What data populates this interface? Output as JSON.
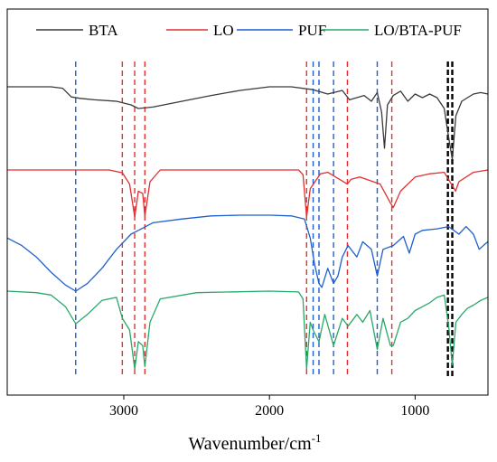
{
  "chart_data": {
    "type": "line",
    "title": "",
    "xlabel": "Wavenumber/cm",
    "xlabel_superscript": "-1",
    "ylabel": "",
    "x_reversed": true,
    "xlim": [
      3800,
      500
    ],
    "x_ticks": [
      {
        "value": 3000,
        "label": "3000"
      },
      {
        "value": 2000,
        "label": "2000"
      },
      {
        "value": 1000,
        "label": "1000"
      }
    ],
    "grid": false,
    "legend_position": "top",
    "series": [
      {
        "name": "BTA",
        "color": "#3a3a3a",
        "baseline": 1.0,
        "points": [
          [
            3800,
            1.0
          ],
          [
            3500,
            1.0
          ],
          [
            3420,
            0.98
          ],
          [
            3360,
            0.86
          ],
          [
            3300,
            0.84
          ],
          [
            3200,
            0.82
          ],
          [
            3050,
            0.8
          ],
          [
            2950,
            0.75
          ],
          [
            2900,
            0.7
          ],
          [
            2800,
            0.72
          ],
          [
            2600,
            0.8
          ],
          [
            2400,
            0.88
          ],
          [
            2200,
            0.95
          ],
          [
            2000,
            1.0
          ],
          [
            1850,
            1.0
          ],
          [
            1700,
            0.96
          ],
          [
            1600,
            0.9
          ],
          [
            1500,
            0.95
          ],
          [
            1450,
            0.82
          ],
          [
            1350,
            0.88
          ],
          [
            1300,
            0.8
          ],
          [
            1260,
            0.92
          ],
          [
            1230,
            0.65
          ],
          [
            1210,
            0.15
          ],
          [
            1190,
            0.75
          ],
          [
            1150,
            0.88
          ],
          [
            1100,
            0.94
          ],
          [
            1050,
            0.8
          ],
          [
            1000,
            0.9
          ],
          [
            950,
            0.85
          ],
          [
            900,
            0.9
          ],
          [
            850,
            0.85
          ],
          [
            800,
            0.7
          ],
          [
            770,
            0.3
          ],
          [
            745,
            0.0
          ],
          [
            720,
            0.6
          ],
          [
            680,
            0.8
          ],
          [
            640,
            0.85
          ],
          [
            600,
            0.9
          ],
          [
            550,
            0.92
          ],
          [
            500,
            0.9
          ]
        ]
      },
      {
        "name": "LO",
        "color": "#e03030",
        "baseline": 1.0,
        "points": [
          [
            3800,
            1.0
          ],
          [
            3100,
            1.0
          ],
          [
            3010,
            0.94
          ],
          [
            2960,
            0.7
          ],
          [
            2925,
            0.0
          ],
          [
            2900,
            0.55
          ],
          [
            2870,
            0.5
          ],
          [
            2855,
            0.02
          ],
          [
            2820,
            0.75
          ],
          [
            2750,
            1.0
          ],
          [
            1800,
            1.0
          ],
          [
            1770,
            0.9
          ],
          [
            1745,
            0.0
          ],
          [
            1720,
            0.6
          ],
          [
            1650,
            0.92
          ],
          [
            1600,
            0.95
          ],
          [
            1465,
            0.7
          ],
          [
            1440,
            0.8
          ],
          [
            1380,
            0.85
          ],
          [
            1240,
            0.7
          ],
          [
            1170,
            0.3
          ],
          [
            1150,
            0.2
          ],
          [
            1100,
            0.55
          ],
          [
            1000,
            0.85
          ],
          [
            900,
            0.92
          ],
          [
            800,
            0.95
          ],
          [
            722,
            0.55
          ],
          [
            700,
            0.75
          ],
          [
            600,
            0.95
          ],
          [
            500,
            1.0
          ]
        ]
      },
      {
        "name": "PUF",
        "color": "#1f5fd0",
        "baseline": 1.0,
        "points": [
          [
            3800,
            0.7
          ],
          [
            3700,
            0.6
          ],
          [
            3600,
            0.45
          ],
          [
            3500,
            0.25
          ],
          [
            3400,
            0.08
          ],
          [
            3330,
            0.0
          ],
          [
            3250,
            0.1
          ],
          [
            3150,
            0.3
          ],
          [
            3050,
            0.55
          ],
          [
            2950,
            0.75
          ],
          [
            2900,
            0.8
          ],
          [
            2800,
            0.9
          ],
          [
            2600,
            0.95
          ],
          [
            2400,
            0.99
          ],
          [
            2200,
            1.0
          ],
          [
            2000,
            1.0
          ],
          [
            1850,
            0.99
          ],
          [
            1760,
            0.95
          ],
          [
            1720,
            0.7
          ],
          [
            1690,
            0.35
          ],
          [
            1660,
            0.1
          ],
          [
            1640,
            0.05
          ],
          [
            1600,
            0.3
          ],
          [
            1560,
            0.1
          ],
          [
            1530,
            0.2
          ],
          [
            1500,
            0.45
          ],
          [
            1460,
            0.6
          ],
          [
            1400,
            0.45
          ],
          [
            1360,
            0.65
          ],
          [
            1300,
            0.55
          ],
          [
            1260,
            0.2
          ],
          [
            1220,
            0.55
          ],
          [
            1150,
            0.6
          ],
          [
            1080,
            0.72
          ],
          [
            1040,
            0.5
          ],
          [
            1000,
            0.75
          ],
          [
            950,
            0.8
          ],
          [
            850,
            0.82
          ],
          [
            770,
            0.85
          ],
          [
            700,
            0.75
          ],
          [
            650,
            0.85
          ],
          [
            600,
            0.75
          ],
          [
            560,
            0.55
          ],
          [
            520,
            0.62
          ],
          [
            500,
            0.65
          ]
        ]
      },
      {
        "name": "LO/BTA-PUF",
        "color": "#2aa86a",
        "baseline": 1.0,
        "points": [
          [
            3800,
            1.0
          ],
          [
            3600,
            0.98
          ],
          [
            3500,
            0.95
          ],
          [
            3400,
            0.8
          ],
          [
            3330,
            0.58
          ],
          [
            3250,
            0.7
          ],
          [
            3150,
            0.88
          ],
          [
            3050,
            0.92
          ],
          [
            3010,
            0.65
          ],
          [
            2960,
            0.5
          ],
          [
            2925,
            0.0
          ],
          [
            2900,
            0.35
          ],
          [
            2870,
            0.3
          ],
          [
            2855,
            0.03
          ],
          [
            2820,
            0.6
          ],
          [
            2750,
            0.9
          ],
          [
            2500,
            0.98
          ],
          [
            2000,
            1.0
          ],
          [
            1800,
            0.99
          ],
          [
            1770,
            0.9
          ],
          [
            1745,
            0.0
          ],
          [
            1720,
            0.6
          ],
          [
            1700,
            0.5
          ],
          [
            1660,
            0.35
          ],
          [
            1620,
            0.7
          ],
          [
            1560,
            0.3
          ],
          [
            1500,
            0.65
          ],
          [
            1460,
            0.55
          ],
          [
            1400,
            0.7
          ],
          [
            1360,
            0.6
          ],
          [
            1310,
            0.75
          ],
          [
            1260,
            0.25
          ],
          [
            1220,
            0.65
          ],
          [
            1170,
            0.3
          ],
          [
            1150,
            0.3
          ],
          [
            1100,
            0.6
          ],
          [
            1050,
            0.65
          ],
          [
            1000,
            0.75
          ],
          [
            950,
            0.8
          ],
          [
            900,
            0.85
          ],
          [
            850,
            0.92
          ],
          [
            800,
            0.95
          ],
          [
            770,
            0.55
          ],
          [
            745,
            0.05
          ],
          [
            720,
            0.6
          ],
          [
            680,
            0.7
          ],
          [
            640,
            0.78
          ],
          [
            600,
            0.82
          ],
          [
            550,
            0.88
          ],
          [
            500,
            0.92
          ]
        ]
      }
    ],
    "reference_lines": [
      {
        "x": 3330,
        "color": "#1f5fd0"
      },
      {
        "x": 3010,
        "color": "#e03030"
      },
      {
        "x": 2925,
        "color": "#e03030"
      },
      {
        "x": 2855,
        "color": "#e03030"
      },
      {
        "x": 1745,
        "color": "#e03030"
      },
      {
        "x": 1700,
        "color": "#1f5fd0"
      },
      {
        "x": 1660,
        "color": "#1f5fd0"
      },
      {
        "x": 1560,
        "color": "#1f5fd0"
      },
      {
        "x": 1465,
        "color": "#e03030"
      },
      {
        "x": 1260,
        "color": "#1f5fd0"
      },
      {
        "x": 1160,
        "color": "#e03030"
      },
      {
        "x": 775,
        "color": "#000000"
      },
      {
        "x": 745,
        "color": "#000000"
      }
    ]
  }
}
